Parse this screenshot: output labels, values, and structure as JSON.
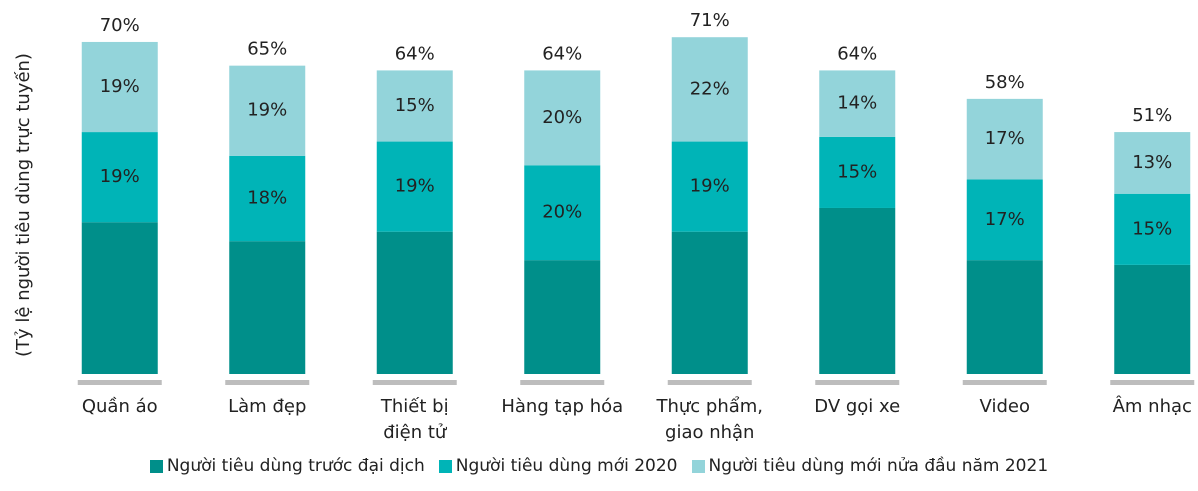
{
  "chart_data": {
    "type": "stacked_bar",
    "y_label": "(Tỷ lệ người tiêu dùng trực tuyến)",
    "categories": [
      "Quần áo",
      "Làm đẹp",
      "Thiết bị\nđiện tử",
      "Hàng tạp hóa",
      "Thực phẩm,\ngiao nhận",
      "DV gọi xe",
      "Video",
      "Âm nhạc"
    ],
    "series": [
      {
        "name": "Người tiêu dùng trước đại dịch",
        "color": "#008f8a",
        "values": [
          32,
          28,
          30,
          24,
          30,
          35,
          24,
          23
        ]
      },
      {
        "name": "Người tiêu dùng mới 2020",
        "color": "#00b4b7",
        "values": [
          19,
          18,
          19,
          20,
          19,
          15,
          17,
          15
        ],
        "value_labels": [
          "19%",
          "18%",
          "19%",
          "20%",
          "19%",
          "15%",
          "17%",
          "15%"
        ]
      },
      {
        "name": "Người tiêu dùng mới nửa đầu năm 2021",
        "color": "#93d4da",
        "values": [
          19,
          19,
          15,
          20,
          22,
          14,
          17,
          13
        ],
        "value_labels": [
          "19%",
          "19%",
          "15%",
          "20%",
          "22%",
          "14%",
          "17%",
          "13%"
        ]
      }
    ],
    "totals": {
      "values": [
        70,
        65,
        64,
        64,
        71,
        64,
        58,
        51
      ],
      "value_labels": [
        "70%",
        "65%",
        "64%",
        "64%",
        "71%",
        "64%",
        "58%",
        "51%"
      ]
    },
    "ylim": [
      0,
      78
    ]
  }
}
